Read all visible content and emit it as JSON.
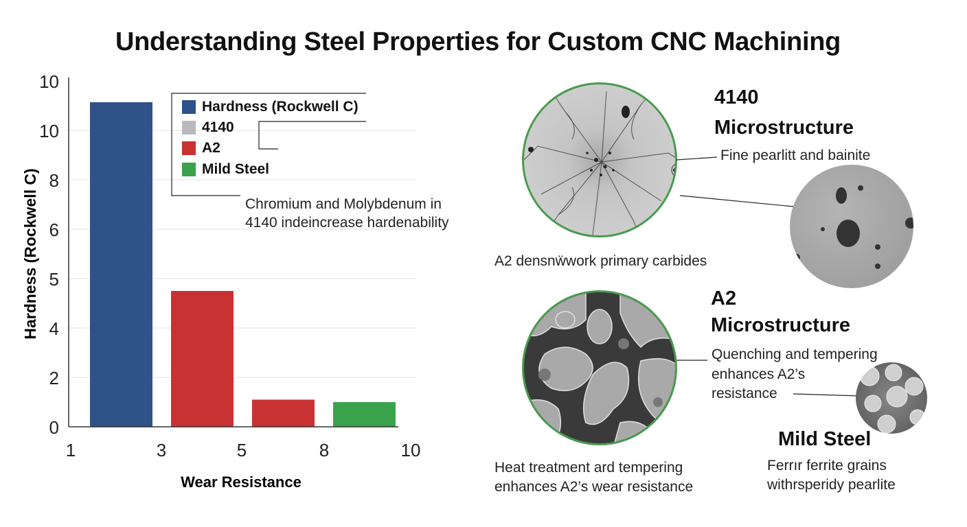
{
  "title": "Understanding Steel Properties for Custom CNC Machining",
  "chart_data": {
    "type": "bar",
    "title": "",
    "xlabel": "Wear Resistance",
    "ylabel": "Hardness (Rockwell C)",
    "y_tick_labels": [
      "0",
      "2",
      "4",
      "5",
      "6",
      "8",
      "10",
      "10"
    ],
    "x_tick_labels": [
      "1",
      "3",
      "5",
      "8",
      "10"
    ],
    "grid": true,
    "legend_position": "top-right",
    "legend": [
      {
        "label": "Hardness (Rockwell C)",
        "color": "#2f5289"
      },
      {
        "label": "4140",
        "color": "#b9b9bd"
      },
      {
        "label": "A2",
        "color": "#c83232"
      },
      {
        "label": "Mild Steel",
        "color": "#3aa24a"
      }
    ],
    "bars": [
      {
        "value": 11.1,
        "color": "#2f5289"
      },
      {
        "value": 4.75,
        "color": "#c83232"
      },
      {
        "value": 1.1,
        "color": "#c83232"
      },
      {
        "value": 1.0,
        "color": "#3aa24a"
      }
    ],
    "annotation": "Chromium and Molybdenum in 4140 indeincrease hardenability"
  },
  "panels": {
    "p4140": {
      "heading1": "4140",
      "heading2": "Microstructure",
      "caption": "Fine pearlitt and bainite"
    },
    "a2_carbides": "A2 densnẅwork primary carbides",
    "a2": {
      "heading1": "A2",
      "heading2": "Microstructure",
      "line1": "Quenching and tempering",
      "line2": "enhances A2’s",
      "line3": "resistance"
    },
    "heat": {
      "line1": "Heat treatment ard tempering",
      "line2": "enhances A2’s wear resistance"
    },
    "mild": {
      "heading": "Mild Steel",
      "line1": "Ferrır ferrite grains",
      "line2": "withrsperidy pearlite"
    }
  }
}
